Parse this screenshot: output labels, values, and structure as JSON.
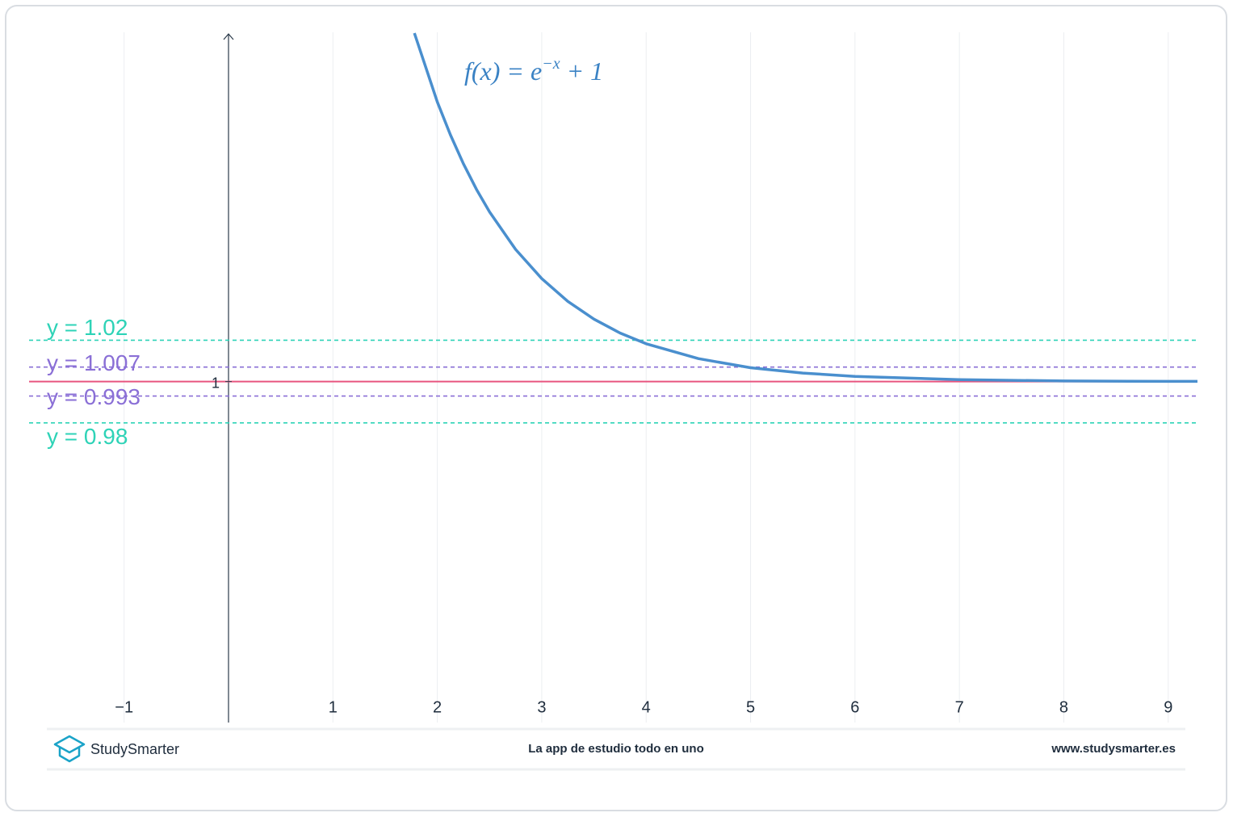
{
  "chart_data": {
    "type": "line",
    "annotation": [
      "f(x) = e",
      "−x",
      " + 1"
    ],
    "x": [
      1.78,
      2,
      2.125,
      2.25,
      2.375,
      2.5,
      2.75,
      3,
      3.25,
      3.5,
      3.75,
      4,
      4.5,
      5,
      5.5,
      6,
      7,
      8,
      9,
      9.28
    ],
    "values": [
      1.1686,
      1.1353,
      1.1194,
      1.1054,
      1.093,
      1.0821,
      1.0639,
      1.0498,
      1.0388,
      1.0302,
      1.0235,
      1.0183,
      1.0111,
      1.0067,
      1.0041,
      1.0025,
      1.0009,
      1.0003,
      1.0001,
      1.0001
    ],
    "color": "#4a8fce",
    "xlim": [
      -1.91,
      9.28
    ],
    "ylim": [
      0.835,
      1.169
    ],
    "xticks": [
      {
        "value": -1,
        "label": "−1"
      },
      1,
      2,
      3,
      4,
      5,
      6,
      7,
      8,
      9
    ],
    "yticks": [
      1
    ],
    "grid": true,
    "reference_lines": [
      {
        "value": 1.02,
        "label": "y = 1.02",
        "color": "#2ed3b7",
        "style": "dashed"
      },
      {
        "value": 1.007,
        "label": "y = 1.007",
        "color": "#8a6fd6",
        "style": "dashed"
      },
      {
        "value": 1,
        "color": "#e8557f",
        "style": "solid"
      },
      {
        "value": 0.993,
        "label": "y = 0.993",
        "color": "#8a6fd6",
        "style": "dashed"
      },
      {
        "value": 0.98,
        "label": "y = 0.98",
        "color": "#2ed3b7",
        "style": "dashed"
      }
    ]
  },
  "footer": {
    "brand": "StudySmarter",
    "tagline": "La app de estudio todo en uno",
    "url": "www.studysmarter.es"
  }
}
